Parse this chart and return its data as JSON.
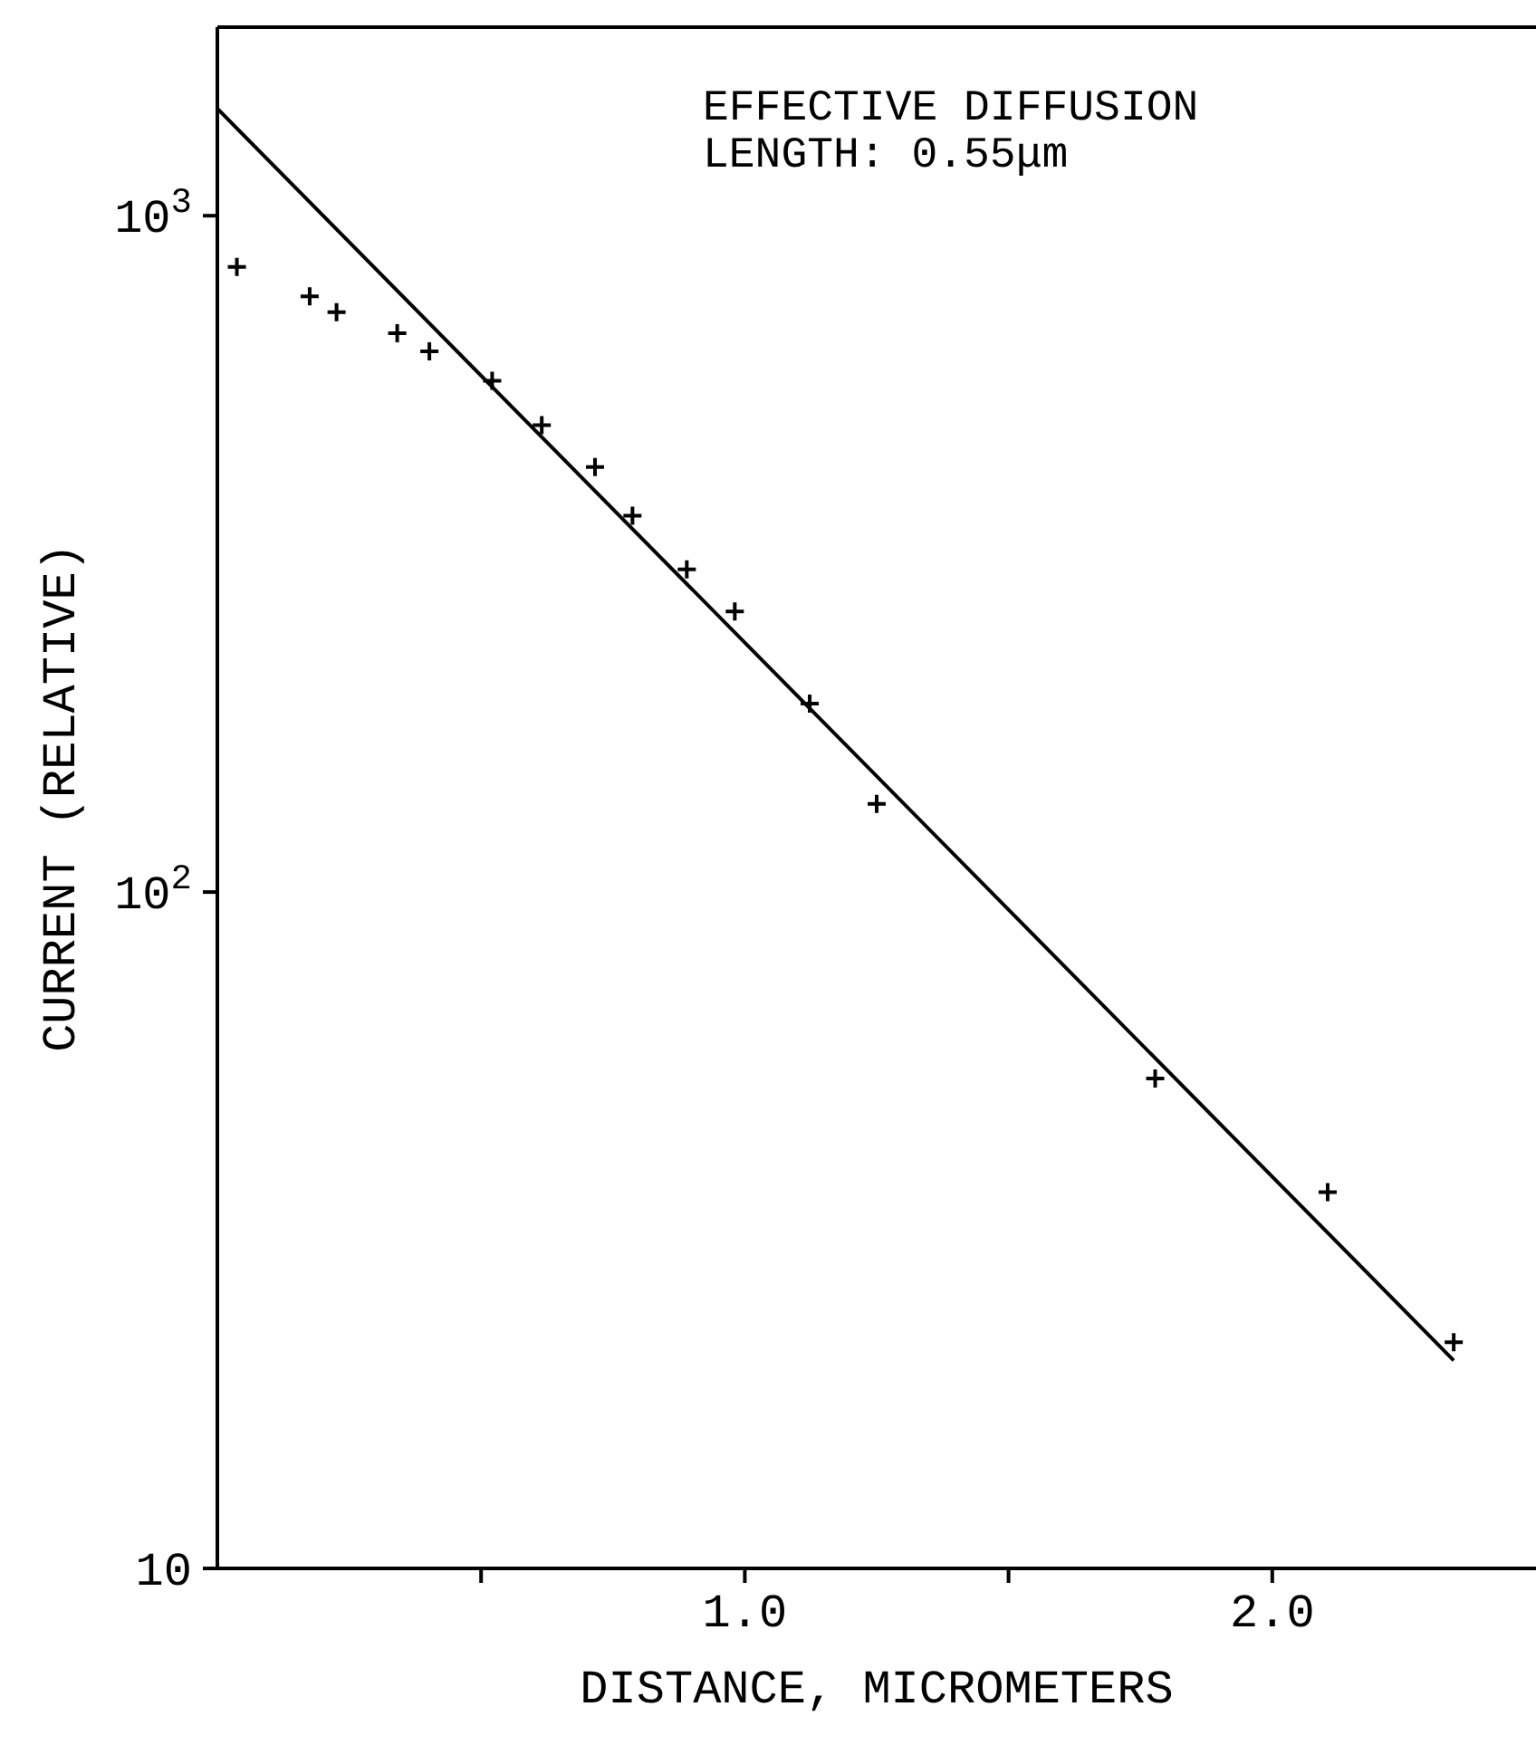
{
  "chart_data": {
    "type": "scatter",
    "xlabel": "DISTANCE, MICROMETERS",
    "ylabel": "CURRENT (RELATIVE)",
    "annotations": [
      "EFFECTIVE DIFFUSION\nLENGTH: 0.55μm"
    ],
    "log": "y",
    "xlim": [
      0,
      2.5
    ],
    "ylim": [
      10,
      1900
    ],
    "xticks": [
      {
        "value": 0.5,
        "label": null
      },
      {
        "value": 1,
        "label": "1.0"
      },
      {
        "value": 1.5,
        "label": null
      },
      {
        "value": 2,
        "label": "2.0"
      }
    ],
    "yticks": [
      10,
      {
        "value": 100,
        "label": "10$^{2}$"
      },
      {
        "value": 1000,
        "label": "10$^{3}$"
      }
    ],
    "series": [
      {
        "color": "#000000",
        "marker": "cross",
        "x": [
          0.037,
          0.175,
          0.226,
          0.341,
          0.402,
          0.521,
          0.615,
          0.716,
          0.787,
          0.89,
          0.981,
          1.123,
          1.25,
          1.778,
          2.105,
          2.344
        ],
        "values": [
          840,
          760,
          720,
          670,
          630,
          570,
          490,
          425,
          360,
          300,
          260,
          190,
          135,
          53,
          36,
          21.6
        ]
      },
      {
        "type": "line",
        "color": "#000000",
        "marker": "none",
        "line_style": "solid",
        "x": [
          0,
          2.344
        ],
        "values": [
          1440,
          20.3
        ]
      }
    ]
  }
}
